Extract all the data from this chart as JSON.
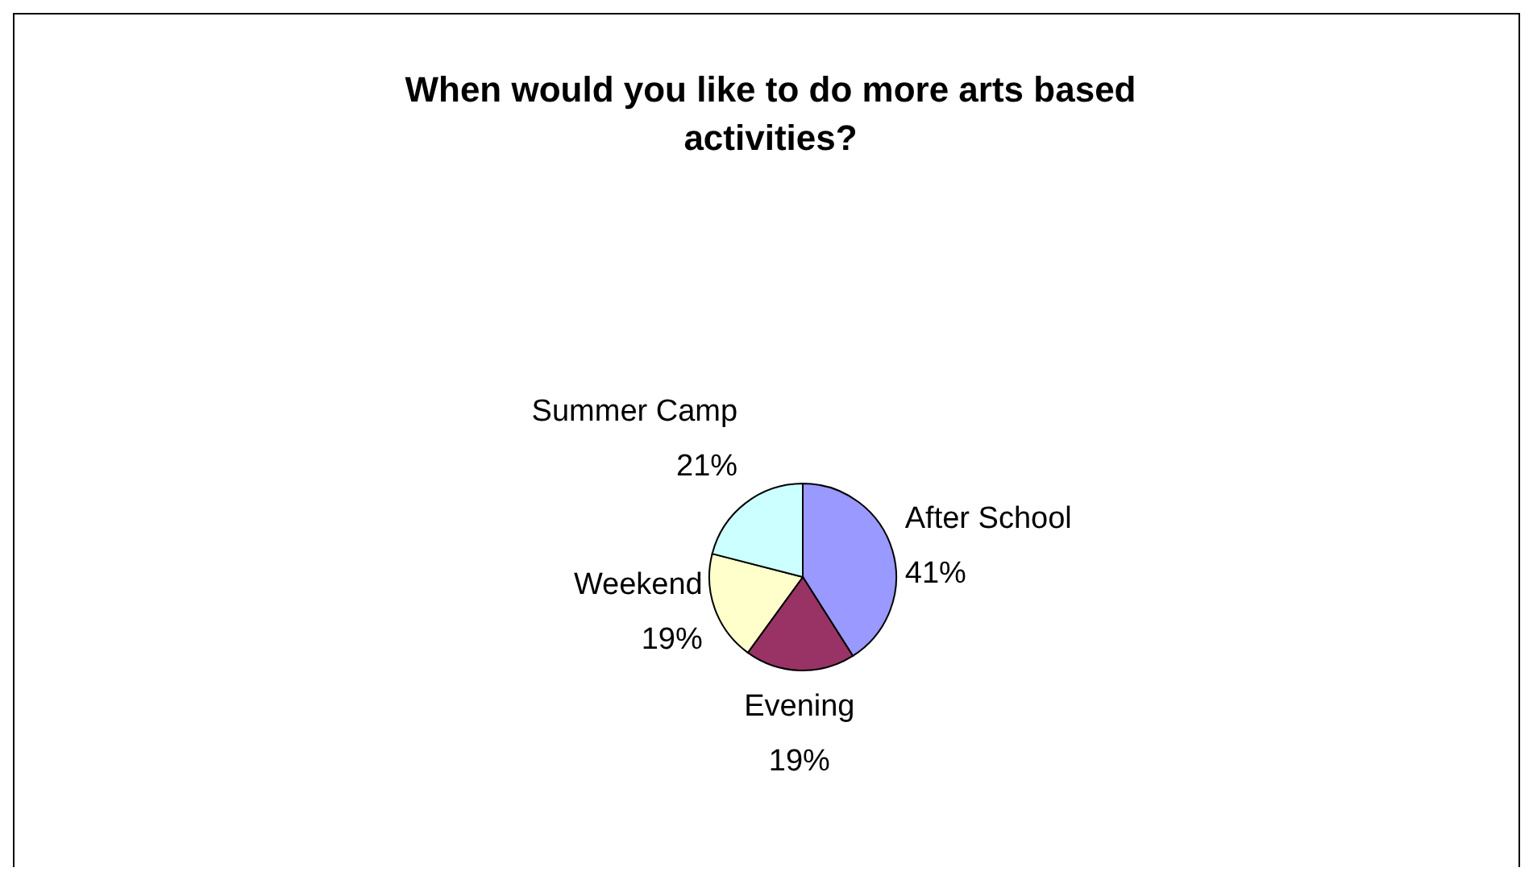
{
  "chart_data": {
    "type": "pie",
    "title": "When would you like to do more arts based activities?",
    "categories": [
      "After School",
      "Evening",
      "Weekend",
      "Summer Camp"
    ],
    "values": [
      41,
      19,
      19,
      21
    ],
    "colors": [
      "#9999ff",
      "#993366",
      "#ffffcc",
      "#ccffff"
    ],
    "value_labels": [
      "41%",
      "19%",
      "19%",
      "21%"
    ]
  }
}
